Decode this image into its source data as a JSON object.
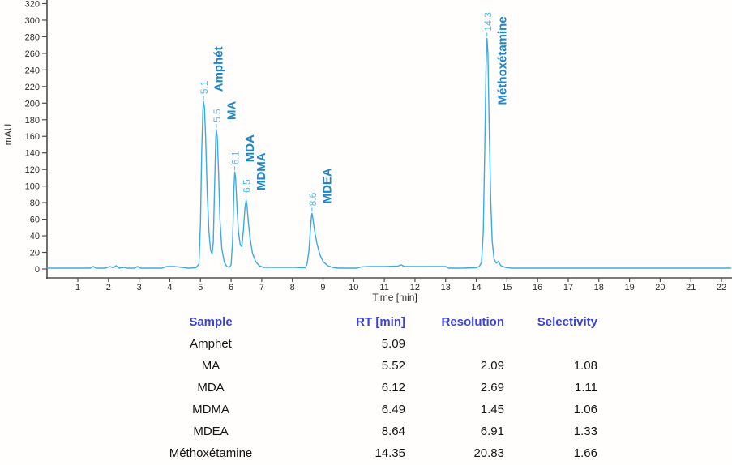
{
  "colors": {
    "curve": "#3aabe3",
    "rt_label": "#4cb9ed",
    "peak_name": "#1687d3",
    "table_header": "#3a43d6",
    "table_text": "#141414",
    "axis_line": "#4d4d4d",
    "tick_text": "#2b2b2b",
    "background": "#fffefd"
  },
  "chart_data": {
    "type": "line",
    "title": "",
    "xlabel": "Time [min]",
    "ylabel": "mAU",
    "x_ticks": [
      1,
      2,
      3,
      4,
      5,
      6,
      7,
      8,
      9,
      10,
      11,
      12,
      13,
      14,
      15,
      16,
      17,
      18,
      19,
      20,
      21,
      22
    ],
    "y_ticks": [
      0,
      20,
      40,
      60,
      80,
      100,
      120,
      140,
      160,
      180,
      200,
      220,
      240,
      260,
      280,
      300,
      320
    ],
    "xlim": [
      0,
      22.35
    ],
    "ylim": [
      0,
      325
    ],
    "grid": "off",
    "legend": "none",
    "peaks": [
      {
        "name": "Amphét",
        "rt_label": "5.1",
        "rt": 5.1,
        "height_mau": 202
      },
      {
        "name": "MA",
        "rt_label": "5.5",
        "rt": 5.52,
        "height_mau": 168
      },
      {
        "name": "MDA",
        "rt_label": "6.1",
        "rt": 6.12,
        "height_mau": 117
      },
      {
        "name": "MDMA",
        "rt_label": "6.5",
        "rt": 6.49,
        "height_mau": 83
      },
      {
        "name": "MDEA",
        "rt_label": "8.6",
        "rt": 8.64,
        "height_mau": 67
      },
      {
        "name": "Méthoxétamine",
        "rt_label": "14.3",
        "rt": 14.35,
        "height_mau": 278
      }
    ],
    "curve_points": [
      [
        0,
        1
      ],
      [
        0.7,
        1
      ],
      [
        1.4,
        1
      ],
      [
        1.5,
        3
      ],
      [
        1.6,
        1
      ],
      [
        1.9,
        1
      ],
      [
        2.05,
        3
      ],
      [
        2.15,
        1.5
      ],
      [
        2.25,
        4
      ],
      [
        2.35,
        1
      ],
      [
        2.5,
        2
      ],
      [
        2.6,
        1
      ],
      [
        2.85,
        1
      ],
      [
        2.95,
        3
      ],
      [
        3.05,
        1
      ],
      [
        3.3,
        1
      ],
      [
        3.75,
        1
      ],
      [
        3.9,
        3
      ],
      [
        4.15,
        3
      ],
      [
        4.4,
        2
      ],
      [
        4.6,
        1
      ],
      [
        4.85,
        1.5
      ],
      [
        4.95,
        6
      ],
      [
        5.0,
        55
      ],
      [
        5.04,
        140
      ],
      [
        5.08,
        192
      ],
      [
        5.1,
        202
      ],
      [
        5.13,
        195
      ],
      [
        5.17,
        158
      ],
      [
        5.22,
        92
      ],
      [
        5.28,
        44
      ],
      [
        5.33,
        23
      ],
      [
        5.38,
        18
      ],
      [
        5.42,
        32
      ],
      [
        5.46,
        95
      ],
      [
        5.5,
        158
      ],
      [
        5.52,
        168
      ],
      [
        5.55,
        159
      ],
      [
        5.59,
        118
      ],
      [
        5.64,
        58
      ],
      [
        5.7,
        24
      ],
      [
        5.78,
        8
      ],
      [
        5.86,
        3
      ],
      [
        5.95,
        2
      ],
      [
        6.0,
        5
      ],
      [
        6.05,
        35
      ],
      [
        6.09,
        95
      ],
      [
        6.12,
        117
      ],
      [
        6.15,
        109
      ],
      [
        6.19,
        78
      ],
      [
        6.24,
        45
      ],
      [
        6.3,
        29
      ],
      [
        6.35,
        27
      ],
      [
        6.4,
        46
      ],
      [
        6.45,
        73
      ],
      [
        6.49,
        83
      ],
      [
        6.52,
        77
      ],
      [
        6.56,
        58
      ],
      [
        6.62,
        37
      ],
      [
        6.7,
        19
      ],
      [
        6.8,
        9
      ],
      [
        6.92,
        4
      ],
      [
        7.05,
        2
      ],
      [
        7.5,
        2
      ],
      [
        8.1,
        2
      ],
      [
        8.3,
        1.5
      ],
      [
        8.42,
        1.5
      ],
      [
        8.48,
        6
      ],
      [
        8.54,
        22
      ],
      [
        8.59,
        48
      ],
      [
        8.62,
        62
      ],
      [
        8.64,
        67
      ],
      [
        8.67,
        61
      ],
      [
        8.72,
        47
      ],
      [
        8.8,
        31
      ],
      [
        8.9,
        17
      ],
      [
        9.0,
        9
      ],
      [
        9.15,
        4
      ],
      [
        9.3,
        2
      ],
      [
        9.5,
        1
      ],
      [
        10.1,
        1
      ],
      [
        10.25,
        2.5
      ],
      [
        10.5,
        3
      ],
      [
        11.0,
        3
      ],
      [
        11.45,
        3.5
      ],
      [
        11.55,
        5
      ],
      [
        11.65,
        3
      ],
      [
        12.1,
        3
      ],
      [
        12.6,
        3
      ],
      [
        13.0,
        3
      ],
      [
        13.1,
        1
      ],
      [
        13.5,
        1
      ],
      [
        14.0,
        1.5
      ],
      [
        14.1,
        3
      ],
      [
        14.17,
        8
      ],
      [
        14.23,
        45
      ],
      [
        14.28,
        150
      ],
      [
        14.32,
        245
      ],
      [
        14.35,
        278
      ],
      [
        14.38,
        260
      ],
      [
        14.42,
        175
      ],
      [
        14.47,
        85
      ],
      [
        14.52,
        33
      ],
      [
        14.58,
        12
      ],
      [
        14.65,
        7
      ],
      [
        14.72,
        9
      ],
      [
        14.8,
        4
      ],
      [
        14.95,
        2
      ],
      [
        15.15,
        1
      ],
      [
        16,
        1
      ],
      [
        17.5,
        1
      ],
      [
        19,
        1
      ],
      [
        20.5,
        1
      ],
      [
        22.3,
        1
      ]
    ]
  },
  "table": {
    "headers": [
      "Sample",
      "RT [min]",
      "Resolution",
      "Selectivity"
    ],
    "rows": [
      [
        "Amphet",
        "5.09",
        "",
        ""
      ],
      [
        "MA",
        "5.52",
        "2.09",
        "1.08"
      ],
      [
        "MDA",
        "6.12",
        "2.69",
        "1.11"
      ],
      [
        "MDMA",
        "6.49",
        "1.45",
        "1.06"
      ],
      [
        "MDEA",
        "8.64",
        "6.91",
        "1.33"
      ],
      [
        "Méthoxétamine",
        "14.35",
        "20.83",
        "1.66"
      ]
    ]
  }
}
